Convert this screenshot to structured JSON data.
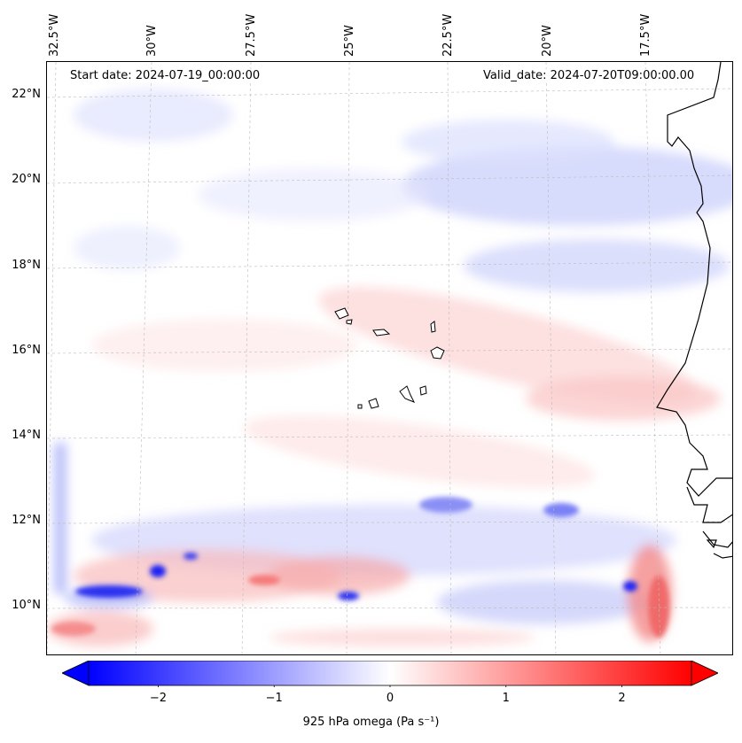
{
  "header": {
    "start_date": "Start date: 2024-07-19_00:00:00",
    "valid_date": "Valid_date: 2024-07-20T09:00:00.00"
  },
  "axes": {
    "lon_labels": [
      "32.5°W",
      "30°W",
      "27.5°W",
      "25°W",
      "22.5°W",
      "20°W",
      "17.5°W"
    ],
    "lat_labels": [
      "22°N",
      "20°N",
      "18°N",
      "16°N",
      "14°N",
      "12°N",
      "10°N"
    ]
  },
  "colorbar": {
    "label": "925 hPa omega (Pa s⁻¹)",
    "ticks": [
      "−2",
      "−1",
      "0",
      "1",
      "2"
    ],
    "tick_values": [
      -2,
      -1,
      0,
      1,
      2
    ],
    "range": [
      -2.6,
      2.6
    ],
    "cmap": "bwr",
    "colors": {
      "negative": "#0000ff",
      "zero": "#ffffff",
      "positive": "#ff0000"
    }
  },
  "map": {
    "region": "Cape Verde / West Africa coast",
    "extent_lon": [
      -32.5,
      -15.0
    ],
    "extent_lat": [
      9.0,
      22.5
    ],
    "field": "925 hPa omega"
  }
}
